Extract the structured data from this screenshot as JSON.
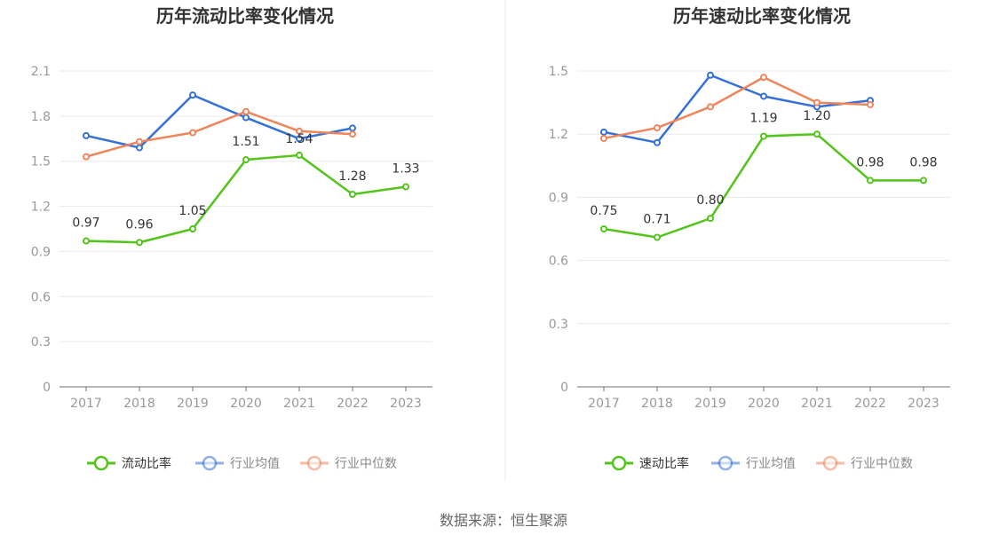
{
  "source": "数据来源：恒生聚源",
  "chart_data": [
    {
      "type": "line",
      "title": "历年流动比率变化情况",
      "categories": [
        "2017",
        "2018",
        "2019",
        "2020",
        "2021",
        "2022",
        "2023"
      ],
      "ylim": [
        0,
        2.1
      ],
      "yticks": [
        "0",
        "0.3",
        "0.6",
        "0.9",
        "1.2",
        "1.5",
        "1.8",
        "2.1"
      ],
      "grid": true,
      "legend_position": "bottom",
      "series": [
        {
          "name": "流动比率",
          "color": "#52c41a",
          "values": [
            0.97,
            0.96,
            1.05,
            1.51,
            1.54,
            1.28,
            1.33
          ],
          "labels": [
            "0.97",
            "0.96",
            "1.05",
            "1.51",
            "1.54",
            "1.28",
            "1.33"
          ]
        },
        {
          "name": "行业均值",
          "color": "#3470d8",
          "values": [
            1.67,
            1.59,
            1.94,
            1.79,
            1.65,
            1.72,
            null
          ]
        },
        {
          "name": "行业中位数",
          "color": "#f0845a",
          "values": [
            1.53,
            1.63,
            1.69,
            1.83,
            1.7,
            1.68,
            null
          ]
        }
      ]
    },
    {
      "type": "line",
      "title": "历年速动比率变化情况",
      "categories": [
        "2017",
        "2018",
        "2019",
        "2020",
        "2021",
        "2022",
        "2023"
      ],
      "ylim": [
        0,
        1.5
      ],
      "yticks": [
        "0",
        "0.3",
        "0.6",
        "0.9",
        "1.2",
        "1.5"
      ],
      "grid": true,
      "legend_position": "bottom",
      "series": [
        {
          "name": "速动比率",
          "color": "#52c41a",
          "values": [
            0.75,
            0.71,
            0.8,
            1.19,
            1.2,
            0.98,
            0.98
          ],
          "labels": [
            "0.75",
            "0.71",
            "0.80",
            "1.19",
            "1.20",
            "0.98",
            "0.98"
          ]
        },
        {
          "name": "行业均值",
          "color": "#3470d8",
          "values": [
            1.21,
            1.16,
            1.48,
            1.38,
            1.33,
            1.36,
            null
          ]
        },
        {
          "name": "行业中位数",
          "color": "#f0845a",
          "values": [
            1.18,
            1.23,
            1.33,
            1.47,
            1.35,
            1.34,
            null
          ]
        }
      ]
    }
  ]
}
